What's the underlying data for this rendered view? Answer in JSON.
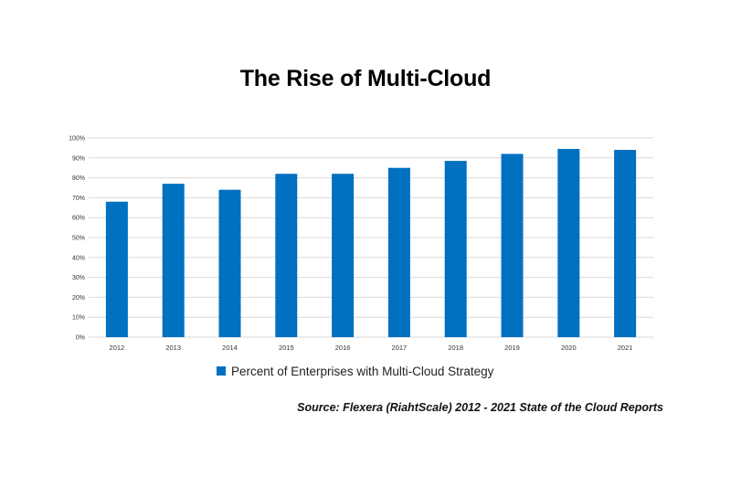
{
  "chart_data": {
    "type": "bar",
    "title": "The Rise of Multi-Cloud",
    "categories": [
      "2012",
      "2013",
      "2014",
      "2015",
      "2016",
      "2017",
      "2018",
      "2019",
      "2020",
      "2021"
    ],
    "series": [
      {
        "name": "Percent of Enterprises with Multi-Cloud Strategy",
        "color": "#0070C0",
        "values": [
          68,
          77,
          74,
          82,
          82,
          85,
          88.5,
          92,
          94.5,
          94
        ]
      }
    ],
    "yticks": [
      "0%",
      "10%",
      "20%",
      "30%",
      "40%",
      "50%",
      "60%",
      "70%",
      "80%",
      "90%",
      "100%"
    ],
    "ylim": [
      0,
      100
    ],
    "grid": true,
    "gridline_color": "#d9d9d9",
    "legend_position": "bottom",
    "source": "Source: Flexera (RiahtScale) 2012 - 2021 State of the Cloud Reports"
  }
}
